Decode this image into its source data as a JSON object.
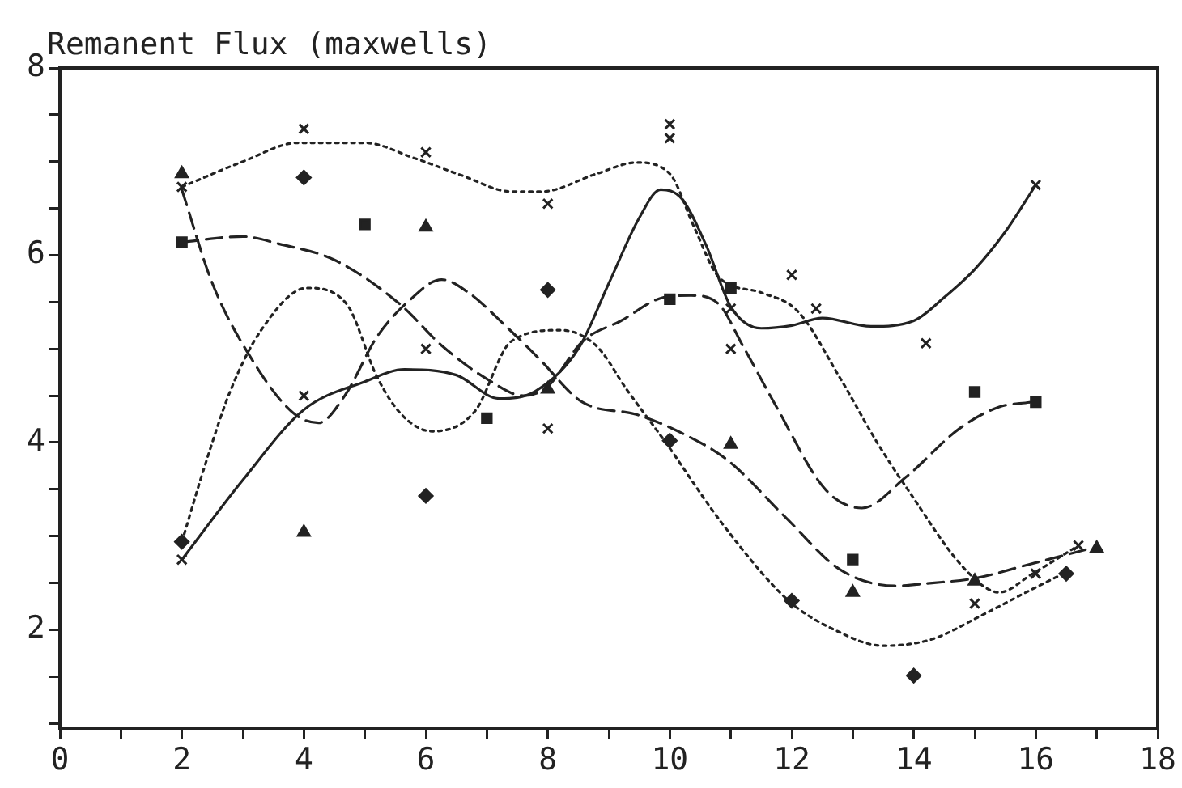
{
  "chart_data": {
    "type": "scatter",
    "ylabel": "Remanent Flux (maxwells)",
    "xlim": [
      0,
      18
    ],
    "xticks": [
      0,
      {
        "value": 1,
        "label": null
      },
      2,
      {
        "value": 3,
        "label": null
      },
      4,
      {
        "value": 5,
        "label": null
      },
      6,
      {
        "value": 7,
        "label": null
      },
      8,
      {
        "value": 9,
        "label": null
      },
      10,
      {
        "value": 11,
        "label": null
      },
      12,
      {
        "value": 13,
        "label": null
      },
      14,
      {
        "value": 15,
        "label": null
      },
      16,
      {
        "value": 17,
        "label": null
      },
      18
    ],
    "ylim": [
      0.95,
      8
    ],
    "yticks": [
      {
        "value": 1,
        "label": null
      },
      {
        "value": 1.5,
        "label": null
      },
      2,
      {
        "value": 2.5,
        "label": null
      },
      {
        "value": 3,
        "label": null
      },
      {
        "value": 3.5,
        "label": null
      },
      4,
      {
        "value": 4.5,
        "label": null
      },
      {
        "value": 5,
        "label": null
      },
      {
        "value": 5.5,
        "label": null
      },
      6,
      {
        "value": 6.5,
        "label": null
      },
      {
        "value": 7,
        "label": null
      },
      {
        "value": 7.5,
        "label": null
      },
      8
    ],
    "grid": false,
    "legend": false,
    "series": [
      {
        "type": "scatter",
        "marker": "cross",
        "color": "#222222",
        "x": [
          2,
          4,
          6,
          8,
          10,
          10,
          2,
          4,
          6,
          8,
          11,
          11,
          12,
          12.4,
          14.2,
          16,
          15,
          16,
          16.7
        ],
        "values": [
          6.73,
          7.35,
          7.1,
          6.55,
          7.4,
          7.25,
          2.75,
          4.5,
          5.0,
          4.15,
          5.0,
          5.43,
          5.79,
          5.43,
          5.06,
          6.75,
          2.28,
          2.6,
          2.9
        ]
      },
      {
        "type": "scatter",
        "marker": "diamond",
        "color": "#222222",
        "x": [
          2,
          4,
          6,
          8,
          10,
          12,
          14,
          16.5
        ],
        "values": [
          2.94,
          6.83,
          3.43,
          5.63,
          4.02,
          2.31,
          1.51,
          2.6
        ]
      },
      {
        "type": "scatter",
        "marker": "square",
        "color": "#222222",
        "x": [
          2,
          5,
          7,
          10,
          11,
          13,
          15,
          16
        ],
        "values": [
          6.14,
          6.33,
          4.26,
          5.53,
          5.65,
          2.75,
          4.54,
          4.43
        ]
      },
      {
        "type": "scatter",
        "marker": "triangle",
        "color": "#222222",
        "x": [
          2,
          4,
          6,
          8,
          11,
          13,
          15,
          17
        ],
        "values": [
          6.87,
          3.04,
          6.3,
          4.57,
          3.98,
          2.4,
          2.52,
          2.87
        ]
      },
      {
        "type": "line",
        "marker": "none",
        "line_style": "solid",
        "color": "#222222",
        "x": [
          2,
          3,
          4,
          5,
          5.65,
          6.5,
          7.2,
          7.8,
          8.5,
          9,
          9.5,
          9.85,
          10.2,
          10.6,
          11,
          11.5,
          12,
          12.5,
          13.3,
          14,
          14.5,
          15,
          15.5,
          16
        ],
        "values": [
          2.75,
          3.6,
          4.35,
          4.65,
          4.78,
          4.72,
          4.47,
          4.55,
          5.0,
          5.7,
          6.4,
          6.7,
          6.6,
          6.1,
          5.45,
          5.22,
          5.25,
          5.33,
          5.24,
          5.3,
          5.55,
          5.85,
          6.25,
          6.75
        ]
      },
      {
        "type": "line",
        "marker": "none",
        "line_style": "dotted",
        "color": "#222222",
        "x": [
          2,
          3,
          3.9,
          5,
          5.8,
          6.6,
          7.4,
          7.9,
          8.8,
          9.45,
          10,
          10.4,
          10.8,
          11.5,
          12.1,
          12.8,
          13.4,
          13.9,
          14.85,
          15.4,
          15.95,
          16.7
        ],
        "values": [
          6.73,
          7.0,
          7.2,
          7.2,
          7.04,
          6.85,
          6.68,
          6.68,
          6.87,
          6.99,
          6.87,
          6.3,
          5.77,
          5.6,
          5.4,
          4.68,
          4.0,
          3.5,
          2.64,
          2.4,
          2.6,
          2.9
        ]
      },
      {
        "type": "line",
        "marker": "none",
        "line_style": "dashed",
        "color": "#222222",
        "x": [
          2,
          3,
          3.6,
          4.5,
          5.57,
          6.27,
          7.0,
          7.6,
          8.0,
          8.57,
          9.2,
          9.9,
          10.35,
          10.8,
          11.2,
          11.75,
          12.55,
          13.15,
          13.87,
          14.75,
          15.4,
          15.9
        ],
        "values": [
          6.14,
          6.2,
          6.12,
          5.95,
          5.48,
          5.03,
          4.68,
          4.5,
          4.6,
          5.08,
          5.3,
          5.55,
          5.57,
          5.48,
          5.03,
          4.38,
          3.5,
          3.3,
          3.63,
          4.15,
          4.38,
          4.43
        ]
      },
      {
        "type": "line",
        "marker": "none",
        "line_style": "dashed",
        "color": "#222222",
        "x": [
          2,
          2.5,
          3.08,
          3.8,
          4.24,
          4.67,
          5.2,
          5.7,
          6.26,
          6.7,
          7.3,
          7.85,
          8.57,
          9.45,
          10.2,
          10.95,
          11.9,
          12.8,
          13.7,
          14.3,
          15,
          15.9,
          16.9
        ],
        "values": [
          6.7,
          5.7,
          4.96,
          4.33,
          4.21,
          4.5,
          5.13,
          5.5,
          5.74,
          5.6,
          5.25,
          4.9,
          4.43,
          4.3,
          4.1,
          3.81,
          3.2,
          2.64,
          2.47,
          2.5,
          2.55,
          2.7,
          2.87
        ]
      },
      {
        "type": "line",
        "marker": "none",
        "line_style": "dotted",
        "color": "#222222",
        "x": [
          2,
          2.4,
          2.8,
          3.3,
          4.05,
          4.7,
          5.2,
          5.6,
          6.1,
          6.8,
          7.4,
          8.2,
          8.8,
          9.3,
          9.9,
          10.9,
          11.95,
          12.7,
          13.5,
          14.3,
          15.1,
          15.9,
          16.45
        ],
        "values": [
          2.94,
          3.8,
          4.56,
          5.2,
          5.65,
          5.48,
          4.7,
          4.3,
          4.12,
          4.33,
          5.08,
          5.2,
          5.03,
          4.56,
          4.03,
          3.1,
          2.31,
          2.0,
          1.83,
          1.9,
          2.15,
          2.42,
          2.6
        ]
      }
    ]
  }
}
